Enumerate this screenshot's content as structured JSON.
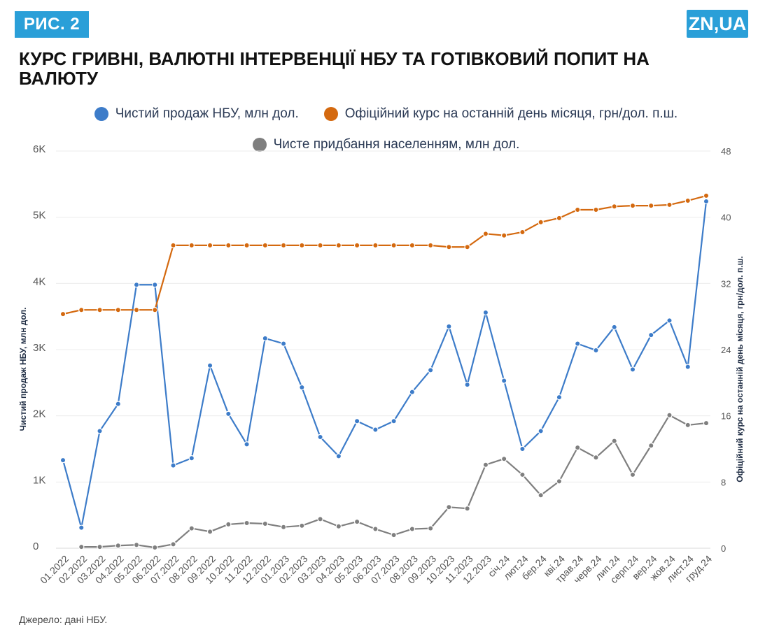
{
  "header": {
    "badge": "РИС. 2",
    "logo": "ZN,UA",
    "title": "КУРС ГРИВНІ, ВАЛЮТНІ ІНТЕРВЕНЦІЇ НБУ ТА ГОТІВКОВИЙ ПОПИТ НА ВАЛЮТУ"
  },
  "source": "Джерело: дані НБУ.",
  "colors": {
    "blue": "#3d7cc9",
    "orange": "#d4690f",
    "gray": "#7f7f7f",
    "accent": "#2a9fd8"
  },
  "chart_data": {
    "type": "line",
    "categories": [
      "01.2022",
      "02.2022",
      "03.2022",
      "04.2022",
      "05.2022",
      "06.2022",
      "07.2022",
      "08.2022",
      "09.2022",
      "10.2022",
      "11.2022",
      "12.2022",
      "01.2023",
      "02.2023",
      "03.2023",
      "04.2023",
      "05.2023",
      "06.2023",
      "07.2023",
      "08.2023",
      "09.2023",
      "10.2023",
      "11.2023",
      "12.2023",
      "січ.24",
      "лют.24",
      "бер.24",
      "кві.24",
      "трав.24",
      "черв.24",
      "лип.24",
      "серп.24",
      "вер.24",
      "жов.24",
      "лист.24",
      "груд.24"
    ],
    "series": [
      {
        "name": "Чистий продаж НБУ, млн дол.",
        "axis": "left",
        "color": "#3d7cc9",
        "values": [
          1330,
          310,
          1770,
          2180,
          3980,
          3980,
          1250,
          1360,
          2760,
          2030,
          1570,
          3170,
          3090,
          2430,
          1680,
          1390,
          1920,
          1790,
          1920,
          2360,
          2690,
          3350,
          2470,
          3560,
          2530,
          1500,
          1770,
          2280,
          3090,
          2990,
          3340,
          2700,
          3220,
          3440,
          2740,
          5240
        ]
      },
      {
        "name": "Офіційний курс на останній день місяця, грн/дол. п.ш.",
        "axis": "right",
        "color": "#d4690f",
        "values": [
          28.3,
          28.8,
          28.8,
          28.8,
          28.8,
          28.8,
          36.6,
          36.6,
          36.6,
          36.6,
          36.6,
          36.6,
          36.6,
          36.6,
          36.6,
          36.6,
          36.6,
          36.6,
          36.6,
          36.6,
          36.6,
          36.4,
          36.4,
          38.0,
          37.8,
          38.2,
          39.4,
          39.9,
          40.9,
          40.9,
          41.3,
          41.4,
          41.4,
          41.5,
          42.0,
          42.6
        ]
      },
      {
        "name": "Чисте придбання населенням, млн дол.",
        "axis": "left",
        "color": "#7f7f7f",
        "values": [
          null,
          20,
          20,
          40,
          50,
          10,
          60,
          300,
          250,
          360,
          380,
          370,
          320,
          340,
          440,
          330,
          400,
          290,
          200,
          290,
          300,
          620,
          600,
          1260,
          1350,
          1110,
          800,
          1010,
          1520,
          1370,
          1620,
          1110,
          1550,
          2010,
          1860,
          1890
        ]
      }
    ],
    "ylabel_left": "Чистий продаж НБУ, млн дол.",
    "ylabel_right": "Офіційний курс на останній день місяця, грн/дол. п.ш.",
    "ylim_left": [
      0,
      6000
    ],
    "ylim_right": [
      0,
      48
    ],
    "yticks_left": [
      "0",
      "1K",
      "2K",
      "3K",
      "4K",
      "5K",
      "6K"
    ],
    "yticks_right": [
      "0",
      "8",
      "16",
      "24",
      "32",
      "40",
      "48"
    ],
    "grid": true,
    "legend_placement": "top-center"
  }
}
